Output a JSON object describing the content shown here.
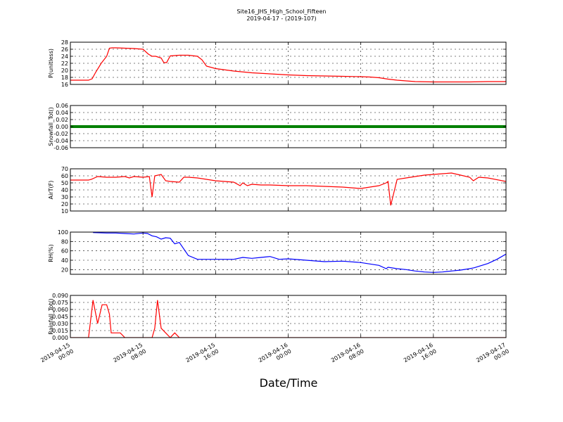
{
  "figure": {
    "title": "Site16_JHS_High_School_Fifteen",
    "subtitle": "2019-04-17 - (2019-107)",
    "xlabel": "Date/Time"
  },
  "chart_data": [
    {
      "type": "line",
      "ylabel": "P(unitless)",
      "ylim": [
        16,
        28
      ],
      "yticks": [
        "16",
        "18",
        "20",
        "22",
        "24",
        "26",
        "28"
      ],
      "xlim": [
        0,
        48
      ],
      "grid": true,
      "series": [
        {
          "color": "#ff0000",
          "x": [
            0,
            1,
            2,
            2.4,
            2.8,
            3.4,
            4,
            4.3,
            4.6,
            5,
            6,
            7,
            8,
            8.6,
            9,
            9.4,
            10,
            10.3,
            10.6,
            11,
            12,
            13,
            14,
            14.5,
            15,
            16,
            18,
            20,
            22,
            24,
            26,
            28,
            30,
            32,
            33,
            34,
            35,
            36,
            38,
            40,
            42,
            44,
            46,
            48
          ],
          "y": [
            17.2,
            17.2,
            17.2,
            17.6,
            19.5,
            22,
            24,
            26.3,
            26.4,
            26.4,
            26.3,
            26.2,
            26,
            24.6,
            24,
            24,
            23.5,
            22.2,
            22.2,
            24.1,
            24.3,
            24.3,
            24,
            23,
            21.2,
            20.5,
            19.8,
            19.3,
            19,
            18.7,
            18.5,
            18.4,
            18.3,
            18.2,
            18.1,
            17.9,
            17.5,
            17.2,
            16.8,
            16.7,
            16.7,
            16.7,
            16.8,
            16.8
          ]
        }
      ]
    },
    {
      "type": "line",
      "ylabel": "Snowfall_Tot()",
      "ylim": [
        -0.06,
        0.06
      ],
      "yticks": [
        "-0.06",
        "-0.04",
        "-0.02",
        "0.00",
        "0.02",
        "0.04",
        "0.06"
      ],
      "xlim": [
        0,
        48
      ],
      "grid": true,
      "series": [
        {
          "color": "#008000",
          "x": [
            0,
            48
          ],
          "y": [
            0,
            0
          ]
        }
      ]
    },
    {
      "type": "line",
      "ylabel": "AirT(F)",
      "ylim": [
        10,
        70
      ],
      "yticks": [
        "10",
        "20",
        "30",
        "40",
        "50",
        "60",
        "70"
      ],
      "xlim": [
        0,
        48
      ],
      "grid": true,
      "series": [
        {
          "color": "#ff0000",
          "x": [
            0,
            1,
            2,
            2.3,
            3,
            4,
            5,
            6,
            6.5,
            7,
            8,
            8.7,
            9,
            9.3,
            10,
            10.5,
            11,
            12,
            12.5,
            13,
            14,
            15,
            16,
            17,
            18,
            18.7,
            19,
            19.5,
            20,
            21,
            22,
            24,
            26,
            28,
            30,
            32,
            34,
            34.8,
            35,
            35.3,
            36,
            37,
            38,
            39,
            40,
            41,
            42,
            43,
            44,
            44.4,
            45,
            46,
            48
          ],
          "y": [
            54,
            54,
            54,
            55,
            59,
            58,
            58,
            59,
            57,
            59,
            58,
            59,
            30,
            60,
            62,
            53,
            52,
            51,
            58,
            58,
            57,
            55,
            53,
            52,
            51,
            46,
            50,
            46,
            48,
            47,
            47,
            46,
            46,
            45,
            44,
            42,
            46,
            50,
            52,
            18,
            55,
            57,
            59,
            61,
            62,
            63,
            64,
            61,
            58,
            53,
            58,
            57,
            52
          ]
        }
      ]
    },
    {
      "type": "line",
      "ylabel": "RH(%)",
      "ylim": [
        10,
        100
      ],
      "yticks": [
        "20",
        "40",
        "60",
        "80",
        "100"
      ],
      "xlim": [
        0,
        48
      ],
      "grid": true,
      "series": [
        {
          "color": "#0000ff",
          "x": [
            2.5,
            4,
            5,
            6,
            7,
            8,
            8.5,
            9,
            9.5,
            10,
            10.5,
            11,
            11.5,
            12,
            13,
            14,
            15,
            16,
            17,
            18,
            19,
            20,
            21,
            22,
            23,
            24,
            26,
            28,
            30,
            32,
            34,
            34.8,
            35,
            36,
            37,
            38,
            39,
            40,
            41,
            42,
            43,
            44,
            44.5,
            45,
            46,
            47,
            48
          ],
          "y": [
            99,
            98,
            98,
            97,
            96,
            98,
            97,
            92,
            90,
            85,
            88,
            87,
            75,
            78,
            50,
            42,
            42,
            42,
            42,
            42,
            46,
            44,
            46,
            48,
            42,
            43,
            40,
            37,
            38,
            35,
            29,
            22,
            25,
            22,
            20,
            17,
            15,
            14,
            15,
            17,
            19,
            22,
            24,
            27,
            33,
            42,
            53
          ]
        }
      ]
    },
    {
      "type": "line",
      "ylabel": "Rainfall_Tot()",
      "ylim": [
        0,
        0.09
      ],
      "yticks": [
        "0.000",
        "0.015",
        "0.030",
        "0.045",
        "0.060",
        "0.075",
        "0.090"
      ],
      "xlim": [
        0,
        48
      ],
      "grid": true,
      "series": [
        {
          "color": "#ff0000",
          "x": [
            0,
            2,
            2.5,
            3,
            3.5,
            4,
            4.3,
            4.5,
            5,
            5.5,
            6,
            8,
            8.5,
            9,
            9.3,
            9.6,
            10,
            10.5,
            11,
            11.5,
            12,
            48
          ],
          "y": [
            0,
            0,
            0.08,
            0.03,
            0.07,
            0.07,
            0.05,
            0.01,
            0.01,
            0.01,
            0,
            0,
            0,
            0,
            0.02,
            0.08,
            0.02,
            0.01,
            0,
            0.01,
            0,
            0
          ]
        }
      ]
    }
  ],
  "x_axis": {
    "ticks": [
      {
        "hours": 0,
        "line1": "2019-04-15",
        "line2": "00:00"
      },
      {
        "hours": 8,
        "line1": "2019-04-15",
        "line2": "08:00"
      },
      {
        "hours": 16,
        "line1": "2019-04-15",
        "line2": "16:00"
      },
      {
        "hours": 24,
        "line1": "2019-04-16",
        "line2": "00:00"
      },
      {
        "hours": 32,
        "line1": "2019-04-16",
        "line2": "08:00"
      },
      {
        "hours": 40,
        "line1": "2019-04-16",
        "line2": "16:00"
      },
      {
        "hours": 48,
        "line1": "2019-04-17",
        "line2": "00:00"
      }
    ]
  }
}
